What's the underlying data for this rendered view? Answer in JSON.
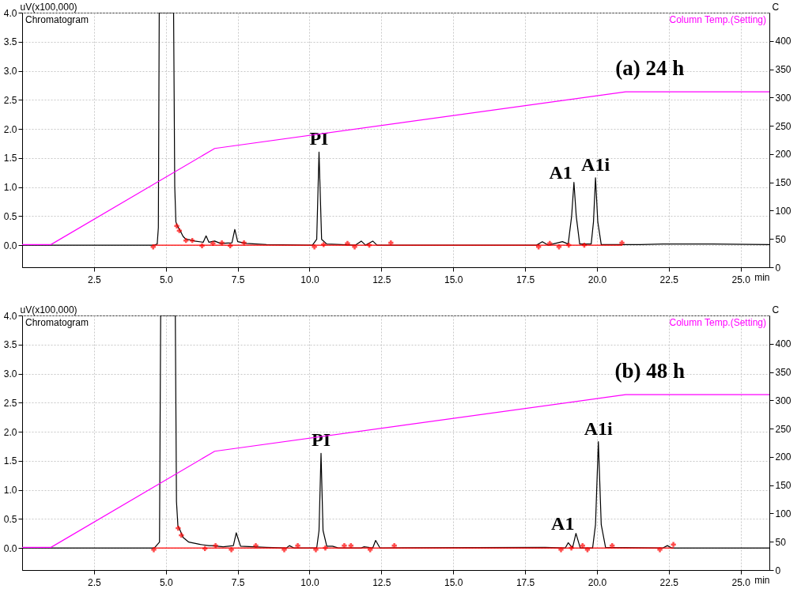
{
  "chart_data": [
    {
      "type": "line",
      "ylabel": "uV(x100,000)",
      "y2label": "C",
      "xlabel": "min",
      "legend": "top",
      "grid": true,
      "line_style": "solid",
      "xlim": [
        0,
        26
      ],
      "xticks": [
        {
          "value": 2.5,
          "label": "2.5"
        },
        {
          "value": 5,
          "label": "5.0"
        },
        {
          "value": 7.5,
          "label": "7.5"
        },
        {
          "value": 10,
          "label": "10.0"
        },
        {
          "value": 12.5,
          "label": "12.5"
        },
        {
          "value": 15,
          "label": "15.0"
        },
        {
          "value": 17.5,
          "label": "17.5"
        },
        {
          "value": 20,
          "label": "20.0"
        },
        {
          "value": 22.5,
          "label": "22.5"
        },
        {
          "value": 25,
          "label": "25.0"
        }
      ],
      "ylim": [
        -0.38,
        4.0
      ],
      "yticks": [
        {
          "value": 0,
          "label": "0.0"
        },
        0.5,
        {
          "value": 1,
          "label": "1.0"
        },
        1.5,
        {
          "value": 2,
          "label": "2.0"
        },
        2.5,
        {
          "value": 3,
          "label": "3.0"
        },
        3.5,
        {
          "value": 4,
          "label": "4.0"
        }
      ],
      "y2lim": [
        0,
        450
      ],
      "y2ticks": [
        0,
        50,
        100,
        150,
        200,
        250,
        300,
        350,
        400
      ],
      "annotations": [
        "(a) 24 h",
        {
          "text": "PI",
          "x": 10.33,
          "y": 1.6
        },
        {
          "text": "A1",
          "x": 19.2,
          "y": 1.08
        },
        {
          "text": "A1i",
          "x": 19.95,
          "y": 1.16
        }
      ],
      "series": [
        {
          "name": "Chromatogram",
          "color": "#000000",
          "x": [
            0,
            4.6,
            4.7,
            4.74,
            4.77,
            5.27,
            5.31,
            5.35,
            5.4,
            5.5,
            5.6,
            5.7,
            5.85,
            6.0,
            6.3,
            6.4,
            6.5,
            6.7,
            6.9,
            7.3,
            7.4,
            7.5,
            7.8,
            8.5,
            10.1,
            10.25,
            10.33,
            10.42,
            10.6,
            11.6,
            11.8,
            11.95,
            12.2,
            12.35,
            17.9,
            18.1,
            18.3,
            18.8,
            19.0,
            19.12,
            19.2,
            19.28,
            19.4,
            19.8,
            19.88,
            19.95,
            20.03,
            20.15,
            21.5,
            22.3,
            24.0,
            26
          ],
          "values": [
            0,
            0,
            0.02,
            0.3,
            4.0,
            4.0,
            1.0,
            0.4,
            0.33,
            0.25,
            0.15,
            0.1,
            0.09,
            0.07,
            0.05,
            0.16,
            0.05,
            0.07,
            0.03,
            0.04,
            0.27,
            0.06,
            0.03,
            0.01,
            0,
            0.1,
            1.6,
            0.1,
            0.02,
            0,
            0.07,
            0,
            0.07,
            0,
            0,
            0.06,
            0,
            0.06,
            0.02,
            0.5,
            1.08,
            0.5,
            0.02,
            0.02,
            0.4,
            1.16,
            0.4,
            0.01,
            0.01,
            0.02,
            0.02,
            0.01
          ]
        },
        {
          "type": "line",
          "color": "#ff0000",
          "x": [
            4.56,
            20.87
          ],
          "values": [
            0,
            0
          ]
        },
        {
          "type": "scatter",
          "color": "#ff0000",
          "marker": "cross",
          "x": [
            4.56,
            5.38,
            5.47,
            5.7,
            5.92,
            6.26,
            6.64,
            6.95,
            7.24,
            7.72,
            10.17,
            10.49,
            11.32,
            11.57,
            12.08,
            12.83,
            17.97,
            18.36,
            18.68,
            19.02,
            19.56,
            20.87
          ],
          "values": [
            -0.03,
            0.33,
            0.25,
            0.08,
            0.08,
            -0.01,
            0.03,
            0.04,
            -0.01,
            0.04,
            -0.03,
            0.01,
            0.03,
            -0.03,
            0.0,
            0.04,
            -0.03,
            0.03,
            -0.03,
            0.0,
            0.0,
            0.04
          ]
        },
        {
          "name": "Column Temp.(Setting)",
          "color": "#ff00ff",
          "axis": "y2",
          "x": [
            0,
            1.0,
            6.7,
            21.0,
            26
          ],
          "values": [
            40,
            40,
            210,
            310,
            310
          ]
        }
      ]
    },
    {
      "type": "line",
      "ylabel": "uV(x100,000)",
      "y2label": "C",
      "xlabel": "min",
      "legend": "top",
      "grid": true,
      "line_style": "solid",
      "xlim": [
        0,
        26
      ],
      "xticks": [
        {
          "value": 2.5,
          "label": "2.5"
        },
        {
          "value": 5,
          "label": "5.0"
        },
        {
          "value": 7.5,
          "label": "7.5"
        },
        {
          "value": 10,
          "label": "10.0"
        },
        {
          "value": 12.5,
          "label": "12.5"
        },
        {
          "value": 15,
          "label": "15.0"
        },
        {
          "value": 17.5,
          "label": "17.5"
        },
        {
          "value": 20,
          "label": "20.0"
        },
        {
          "value": 22.5,
          "label": "22.5"
        },
        {
          "value": 25,
          "label": "25.0"
        }
      ],
      "ylim": [
        -0.38,
        4.0
      ],
      "yticks": [
        {
          "value": 0,
          "label": "0.0"
        },
        0.5,
        {
          "value": 1,
          "label": "1.0"
        },
        1.5,
        {
          "value": 2,
          "label": "2.0"
        },
        2.5,
        {
          "value": 3,
          "label": "3.0"
        },
        3.5,
        {
          "value": 4,
          "label": "4.0"
        }
      ],
      "y2lim": [
        0,
        450
      ],
      "y2ticks": [
        0,
        50,
        100,
        150,
        200,
        250,
        300,
        350,
        400
      ],
      "annotations": [
        "(b) 48 h",
        {
          "text": "PI",
          "x": 10.4,
          "y": 1.63
        },
        {
          "text": "A1",
          "x": 19.27,
          "y": 0.25
        },
        {
          "text": "A1i",
          "x": 20.05,
          "y": 1.83
        }
      ],
      "series": [
        {
          "name": "Chromatogram",
          "color": "#000000",
          "x": [
            0,
            4.6,
            4.78,
            4.82,
            5.33,
            5.37,
            5.42,
            5.5,
            5.6,
            5.8,
            6.2,
            6.5,
            6.6,
            7.0,
            7.35,
            7.45,
            7.6,
            8.5,
            9.2,
            9.3,
            9.45,
            10.25,
            10.33,
            10.4,
            10.47,
            10.6,
            10.8,
            11.0,
            11.8,
            11.9,
            12.2,
            12.3,
            12.45,
            18.2,
            18.9,
            19.0,
            19.15,
            19.27,
            19.42,
            19.85,
            19.95,
            20.05,
            20.15,
            20.3,
            22.3,
            22.45,
            22.6,
            26
          ],
          "values": [
            0,
            0,
            0.1,
            4.0,
            4.0,
            0.8,
            0.38,
            0.3,
            0.18,
            0.1,
            0.06,
            0.04,
            0.04,
            0.02,
            0.04,
            0.26,
            0.03,
            0.01,
            0,
            0.04,
            0,
            0,
            0.3,
            1.63,
            0.3,
            0.03,
            0.03,
            0,
            0,
            0.02,
            0,
            0.13,
            0,
            0.01,
            0,
            0.09,
            0,
            0.25,
            0,
            0,
            0.4,
            1.83,
            0.4,
            0.01,
            0,
            0.04,
            0,
            0
          ]
        },
        {
          "type": "line",
          "color": "#ff0000",
          "x": [
            4.58,
            22.66
          ],
          "values": [
            0,
            0
          ]
        },
        {
          "type": "scatter",
          "color": "#ff0000",
          "marker": "cross",
          "x": [
            4.58,
            5.43,
            5.54,
            6.36,
            6.73,
            7.28,
            8.13,
            9.12,
            9.59,
            10.22,
            10.55,
            11.21,
            11.44,
            12.11,
            12.95,
            18.75,
            19.11,
            19.5,
            19.67,
            20.53,
            22.19,
            22.66
          ],
          "values": [
            -0.03,
            0.34,
            0.22,
            -0.01,
            0.04,
            -0.03,
            0.04,
            -0.03,
            0.04,
            -0.03,
            0.0,
            0.04,
            0.04,
            -0.03,
            0.04,
            -0.03,
            0.0,
            0.04,
            -0.03,
            0.04,
            -0.03,
            0.06
          ]
        },
        {
          "name": "Column Temp.(Setting)",
          "color": "#ff00ff",
          "axis": "y2",
          "x": [
            0,
            1.0,
            6.7,
            21.0,
            26
          ],
          "values": [
            40,
            40,
            210,
            310,
            310
          ]
        }
      ]
    }
  ]
}
